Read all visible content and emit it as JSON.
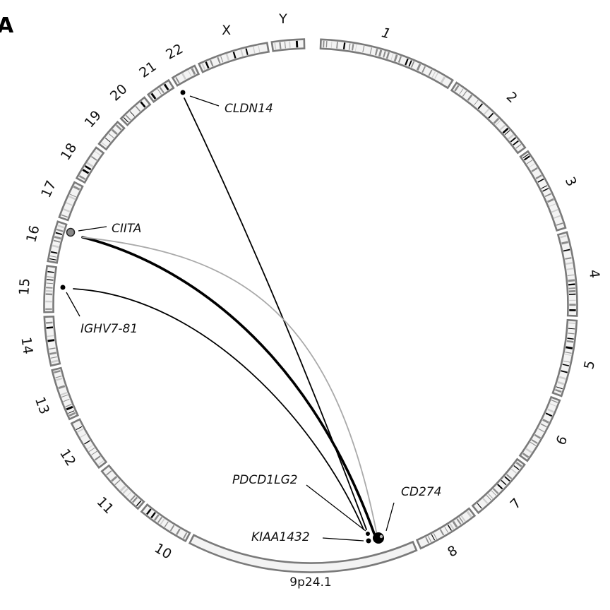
{
  "panel_label": "A",
  "chromosomes": [
    {
      "id": "1",
      "label": "1"
    },
    {
      "id": "2",
      "label": "2"
    },
    {
      "id": "3",
      "label": "3"
    },
    {
      "id": "4",
      "label": "4"
    },
    {
      "id": "5",
      "label": "5"
    },
    {
      "id": "6",
      "label": "6"
    },
    {
      "id": "7",
      "label": "7"
    },
    {
      "id": "8",
      "label": "8"
    },
    {
      "id": "9p24.1",
      "label": "9p24.1"
    },
    {
      "id": "10",
      "label": "10"
    },
    {
      "id": "11",
      "label": "11"
    },
    {
      "id": "12",
      "label": "12"
    },
    {
      "id": "13",
      "label": "13"
    },
    {
      "id": "14",
      "label": "14"
    },
    {
      "id": "15",
      "label": "15"
    },
    {
      "id": "16",
      "label": "16"
    },
    {
      "id": "17",
      "label": "17"
    },
    {
      "id": "18",
      "label": "18"
    },
    {
      "id": "19",
      "label": "19"
    },
    {
      "id": "20",
      "label": "20"
    },
    {
      "id": "21",
      "label": "21"
    },
    {
      "id": "22",
      "label": "22"
    },
    {
      "id": "X",
      "label": "X"
    },
    {
      "id": "Y",
      "label": "Y"
    }
  ],
  "genes": [
    {
      "id": "CLDN14",
      "label": "CLDN14",
      "chromosome": "21"
    },
    {
      "id": "CIITA",
      "label": "CIITA",
      "chromosome": "16"
    },
    {
      "id": "IGHV7-81",
      "label": "IGHV7-81",
      "chromosome": "14"
    },
    {
      "id": "PDCD1LG2",
      "label": "PDCD1LG2",
      "chromosome": "9p24.1"
    },
    {
      "id": "CD274",
      "label": "CD274",
      "chromosome": "9p24.1"
    },
    {
      "id": "KIAA1432",
      "label": "KIAA1432",
      "chromosome": "9p24.1"
    }
  ],
  "links": [
    {
      "from": "CLDN14",
      "to": "PDCD1LG2",
      "color": "#000000",
      "weight": "normal"
    },
    {
      "from": "CIITA",
      "to": "CD274",
      "color": "#000000",
      "weight": "thick"
    },
    {
      "from": "CIITA",
      "to": "CD274",
      "color": "#aaaaaa",
      "weight": "normal"
    },
    {
      "from": "IGHV7-81",
      "to": "PDCD1LG2",
      "color": "#000000",
      "weight": "normal"
    }
  ],
  "colors": {
    "segment_border": "#7a7a7a",
    "segment_fill": "#f3f3f3",
    "band_dark": "#000000",
    "band_mid": "#8c8c8c",
    "link_light": "#aaaaaa"
  }
}
